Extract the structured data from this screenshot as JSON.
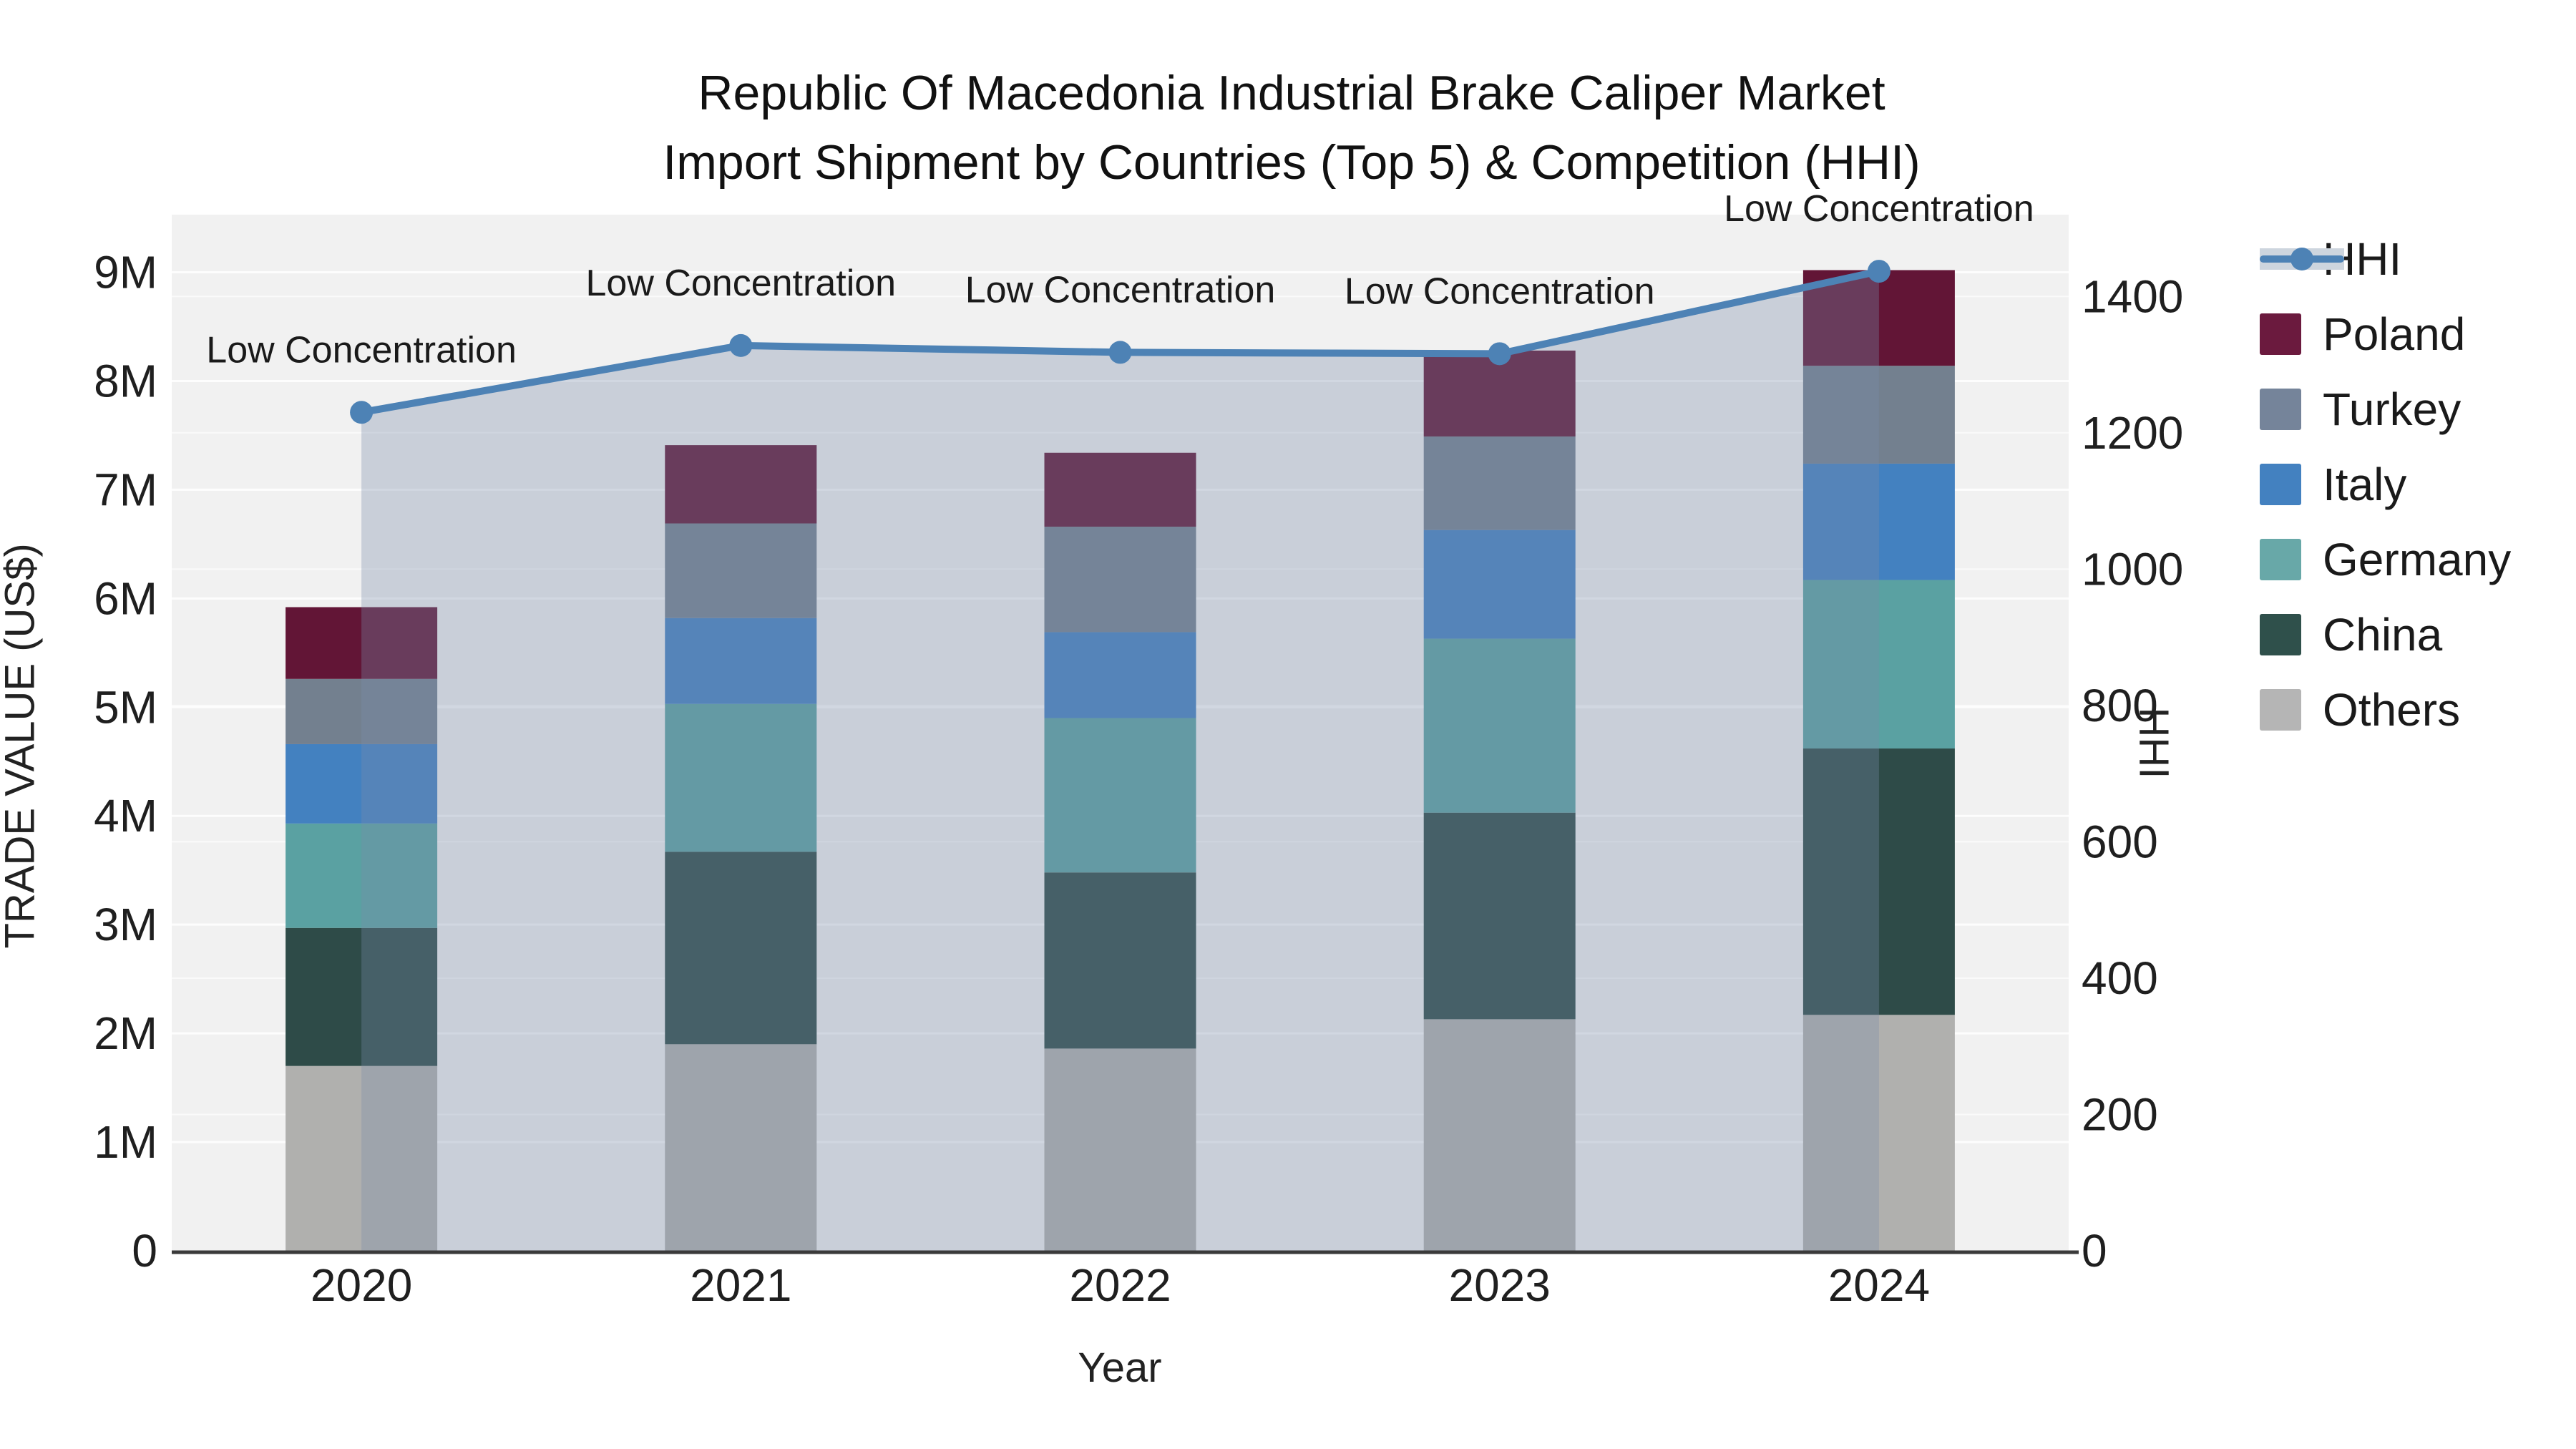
{
  "title": {
    "line1": "Republic Of Macedonia Industrial Brake Caliper Market",
    "line2": "Import Shipment by Countries (Top 5) & Competition (HHI)"
  },
  "chart_data": {
    "type": "combo_stacked_bar_line",
    "categories": [
      "2020",
      "2021",
      "2022",
      "2023",
      "2024"
    ],
    "xlabel": "Year",
    "ylabel": "TRADE VALUE (US$)",
    "y2label": "HHI",
    "bar_value_unit": "millions US$",
    "series": [
      {
        "name": "Others",
        "color": "#b0b0ae",
        "values": [
          1.7,
          1.9,
          1.86,
          2.13,
          2.17
        ]
      },
      {
        "name": "China",
        "color": "#2e4b48",
        "values": [
          1.27,
          1.77,
          1.62,
          1.9,
          2.45
        ]
      },
      {
        "name": "Germany",
        "color": "#5aa1a2",
        "values": [
          0.96,
          1.36,
          1.42,
          1.6,
          1.55
        ]
      },
      {
        "name": "Italy",
        "color": "#4381c0",
        "values": [
          0.73,
          0.79,
          0.79,
          1.0,
          1.07
        ]
      },
      {
        "name": "Turkey",
        "color": "#73808f",
        "values": [
          0.6,
          0.87,
          0.97,
          0.86,
          0.9
        ]
      },
      {
        "name": "Poland",
        "color": "#621536",
        "values": [
          0.66,
          0.72,
          0.68,
          0.79,
          0.88
        ]
      }
    ],
    "bar_totals": [
      5.92,
      7.41,
      7.34,
      8.28,
      9.02
    ],
    "line_series": {
      "name": "HHI",
      "values": [
        1230,
        1328,
        1318,
        1316,
        1437
      ],
      "color": "#4d82b5",
      "area_color": "rgba(120,140,170,0.33)"
    },
    "point_annotations": [
      "Low Concentration",
      "Low Concentration",
      "Low Concentration",
      "Low Concentration",
      "Low Concentration"
    ],
    "yticks": [
      {
        "v": 0,
        "label": "0"
      },
      {
        "v": 1,
        "label": "1M"
      },
      {
        "v": 2,
        "label": "2M"
      },
      {
        "v": 3,
        "label": "3M"
      },
      {
        "v": 4,
        "label": "4M"
      },
      {
        "v": 5,
        "label": "5M"
      },
      {
        "v": 6,
        "label": "6M"
      },
      {
        "v": 7,
        "label": "7M"
      },
      {
        "v": 8,
        "label": "8M"
      },
      {
        "v": 9,
        "label": "9M"
      }
    ],
    "y2ticks": [
      {
        "v": 0,
        "label": "0"
      },
      {
        "v": 200,
        "label": "200"
      },
      {
        "v": 400,
        "label": "400"
      },
      {
        "v": 600,
        "label": "600"
      },
      {
        "v": 800,
        "label": "800"
      },
      {
        "v": 1000,
        "label": "1000"
      },
      {
        "v": 1200,
        "label": "1200"
      },
      {
        "v": 1400,
        "label": "1400"
      }
    ],
    "ylim": [
      0,
      9.53
    ],
    "y2lim": [
      0,
      1520
    ],
    "grid": true,
    "plot_bg": "#f1f1f1",
    "grid_color": "#ffffff",
    "legend_position": "right"
  },
  "legend": {
    "items": [
      {
        "label": "HHI",
        "type": "line",
        "color": "#4d82b5"
      },
      {
        "label": "Poland",
        "type": "swatch",
        "color": "#6b1a3e"
      },
      {
        "label": "Turkey",
        "type": "swatch",
        "color": "#75849a"
      },
      {
        "label": "Italy",
        "type": "swatch",
        "color": "#4381c0"
      },
      {
        "label": "Germany",
        "type": "swatch",
        "color": "#68a8a8"
      },
      {
        "label": "China",
        "type": "swatch",
        "color": "#2f504b"
      },
      {
        "label": "Others",
        "type": "swatch",
        "color": "#b5b5b5"
      }
    ]
  }
}
